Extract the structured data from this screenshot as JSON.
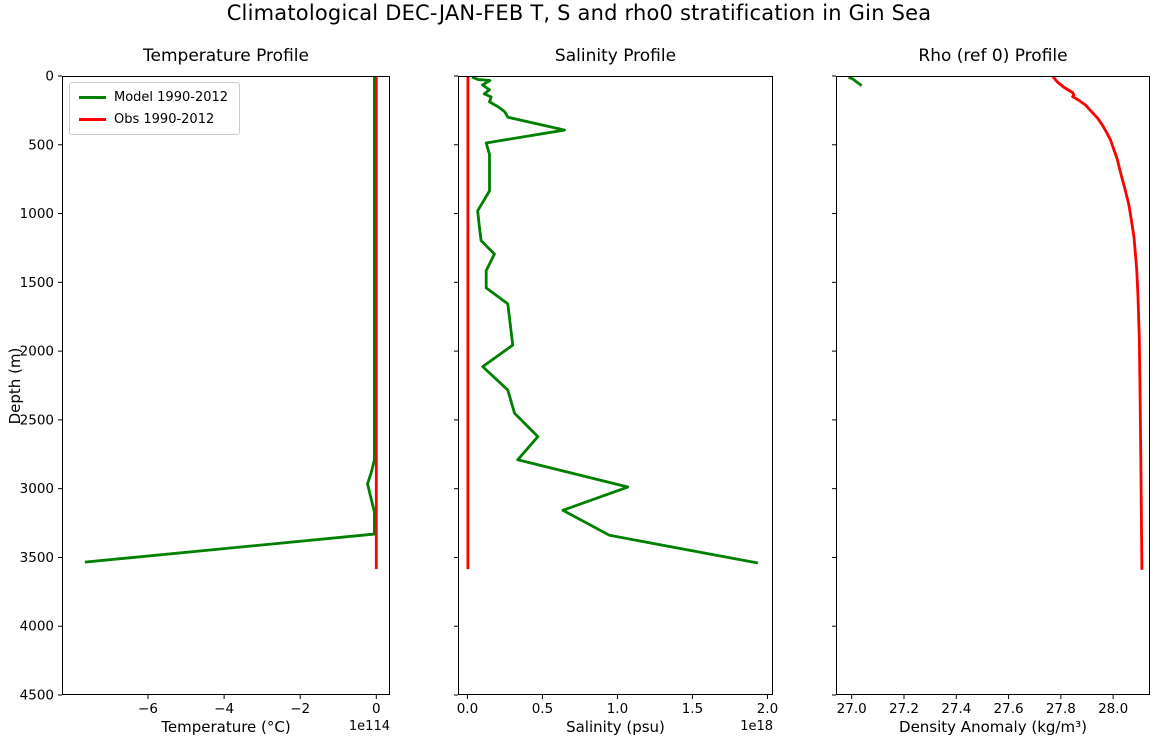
{
  "figure": {
    "title": "Climatological DEC-JAN-FEB T, S and rho0 stratification in Gin Sea",
    "background": "#ffffff"
  },
  "colors": {
    "model": "#008000",
    "obs": "#ff0000",
    "axis": "#000000"
  },
  "legend": {
    "entries": [
      {
        "label": "Model 1990-2012",
        "color": "#008000"
      },
      {
        "label": "Obs 1990-2012",
        "color": "#ff0000"
      }
    ]
  },
  "chart_data": [
    {
      "id": "temperature",
      "type": "line",
      "title": "Temperature Profile",
      "xlabel": "Temperature (°C)",
      "offset_text": "1e114",
      "ylabel": "Depth (m)",
      "xlim": [
        -8.26,
        0.36
      ],
      "ylim": [
        0,
        4500
      ],
      "y_inverted": true,
      "grid": false,
      "xticks": [
        -6,
        -4,
        -2,
        0
      ],
      "xtick_labels": [
        "−6",
        "−4",
        "−2",
        "0"
      ],
      "yticks": [
        0,
        500,
        1000,
        1500,
        2000,
        2500,
        3000,
        3500,
        4000,
        4500
      ],
      "ytick_labels": [
        "0",
        "500",
        "1000",
        "1500",
        "2000",
        "2500",
        "3000",
        "3500",
        "4000",
        "4500"
      ],
      "show_yticks": true,
      "series": [
        {
          "name": "Model 1990-2012",
          "color": "#008000",
          "points": [
            [
              -0.05,
              0
            ],
            [
              -0.05,
              2790
            ],
            [
              -0.13,
              2880
            ],
            [
              -0.23,
              2965
            ],
            [
              -0.13,
              3080
            ],
            [
              -0.05,
              3170
            ],
            [
              -0.05,
              3330
            ],
            [
              -7.66,
              3534
            ]
          ]
        },
        {
          "name": "Obs 1990-2012",
          "color": "#ff0000",
          "points": [
            [
              0.0,
              0
            ],
            [
              0.0,
              3585
            ]
          ]
        }
      ]
    },
    {
      "id": "salinity",
      "type": "line",
      "title": "Salinity Profile",
      "xlabel": "Salinity (psu)",
      "offset_text": "1e18",
      "ylabel": "",
      "xlim": [
        -0.063,
        2.037
      ],
      "ylim": [
        0,
        4500
      ],
      "y_inverted": true,
      "grid": false,
      "xticks": [
        0.0,
        0.5,
        1.0,
        1.5,
        2.0
      ],
      "xtick_labels": [
        "0.0",
        "0.5",
        "1.0",
        "1.5",
        "2.0"
      ],
      "yticks": [
        0,
        500,
        1000,
        1500,
        2000,
        2500,
        3000,
        3500,
        4000,
        4500
      ],
      "ytick_labels": [],
      "show_yticks": false,
      "series": [
        {
          "name": "Model 1990-2012",
          "color": "#008000",
          "points": [
            [
              0.03,
              8
            ],
            [
              0.07,
              25
            ],
            [
              0.15,
              33
            ],
            [
              0.1,
              65
            ],
            [
              0.147,
              100
            ],
            [
              0.112,
              130
            ],
            [
              0.158,
              152
            ],
            [
              0.147,
              188
            ],
            [
              0.202,
              222
            ],
            [
              0.247,
              258
            ],
            [
              0.27,
              300
            ],
            [
              0.647,
              393
            ],
            [
              0.125,
              487
            ],
            [
              0.147,
              570
            ],
            [
              0.147,
              835
            ],
            [
              0.068,
              980
            ],
            [
              0.08,
              1100
            ],
            [
              0.091,
              1197
            ],
            [
              0.18,
              1294
            ],
            [
              0.125,
              1415
            ],
            [
              0.125,
              1540
            ],
            [
              0.269,
              1657
            ],
            [
              0.29,
              1847
            ],
            [
              0.302,
              1956
            ],
            [
              0.102,
              2113
            ],
            [
              0.269,
              2283
            ],
            [
              0.314,
              2452
            ],
            [
              0.469,
              2622
            ],
            [
              0.335,
              2790
            ],
            [
              1.069,
              2988
            ],
            [
              0.636,
              3157
            ],
            [
              0.947,
              3339
            ],
            [
              1.936,
              3540
            ]
          ]
        },
        {
          "name": "Obs 1990-2012",
          "color": "#ff0000",
          "points": [
            [
              0.003,
              0
            ],
            [
              0.003,
              3585
            ]
          ]
        }
      ]
    },
    {
      "id": "rho",
      "type": "line",
      "title": "Rho (ref 0) Profile",
      "xlabel": "Density Anomaly (kg/m³)",
      "offset_text": "",
      "ylabel": "",
      "xlim": [
        26.94,
        28.141
      ],
      "ylim": [
        0,
        4500
      ],
      "y_inverted": true,
      "grid": false,
      "xticks": [
        27.0,
        27.2,
        27.4,
        27.6,
        27.8,
        28.0
      ],
      "xtick_labels": [
        "27.0",
        "27.2",
        "27.4",
        "27.6",
        "27.8",
        "28.0"
      ],
      "yticks": [
        0,
        500,
        1000,
        1500,
        2000,
        2500,
        3000,
        3500,
        4000,
        4500
      ],
      "ytick_labels": [],
      "show_yticks": false,
      "series": [
        {
          "name": "Model 1990-2012",
          "color": "#008000",
          "points": [
            [
              26.988,
              8
            ],
            [
              27.005,
              22
            ],
            [
              27.018,
              42
            ],
            [
              27.038,
              70
            ]
          ]
        },
        {
          "name": "Obs 1990-2012",
          "color": "#ff0000",
          "points": [
            [
              27.77,
              5
            ],
            [
              27.785,
              40
            ],
            [
              27.81,
              80
            ],
            [
              27.845,
              120
            ],
            [
              27.85,
              138
            ],
            [
              27.845,
              150
            ],
            [
              27.87,
              178
            ],
            [
              27.895,
              212
            ],
            [
              27.915,
              255
            ],
            [
              27.94,
              305
            ],
            [
              27.96,
              360
            ],
            [
              27.975,
              410
            ],
            [
              27.99,
              465
            ],
            [
              28.0,
              520
            ],
            [
              28.015,
              600
            ],
            [
              28.03,
              715
            ],
            [
              28.045,
              820
            ],
            [
              28.06,
              935
            ],
            [
              28.07,
              1050
            ],
            [
              28.08,
              1175
            ],
            [
              28.085,
              1290
            ],
            [
              28.09,
              1400
            ],
            [
              28.095,
              1600
            ],
            [
              28.1,
              1900
            ],
            [
              28.103,
              2300
            ],
            [
              28.106,
              2800
            ],
            [
              28.108,
              3200
            ],
            [
              28.11,
              3590
            ]
          ]
        }
      ]
    }
  ]
}
